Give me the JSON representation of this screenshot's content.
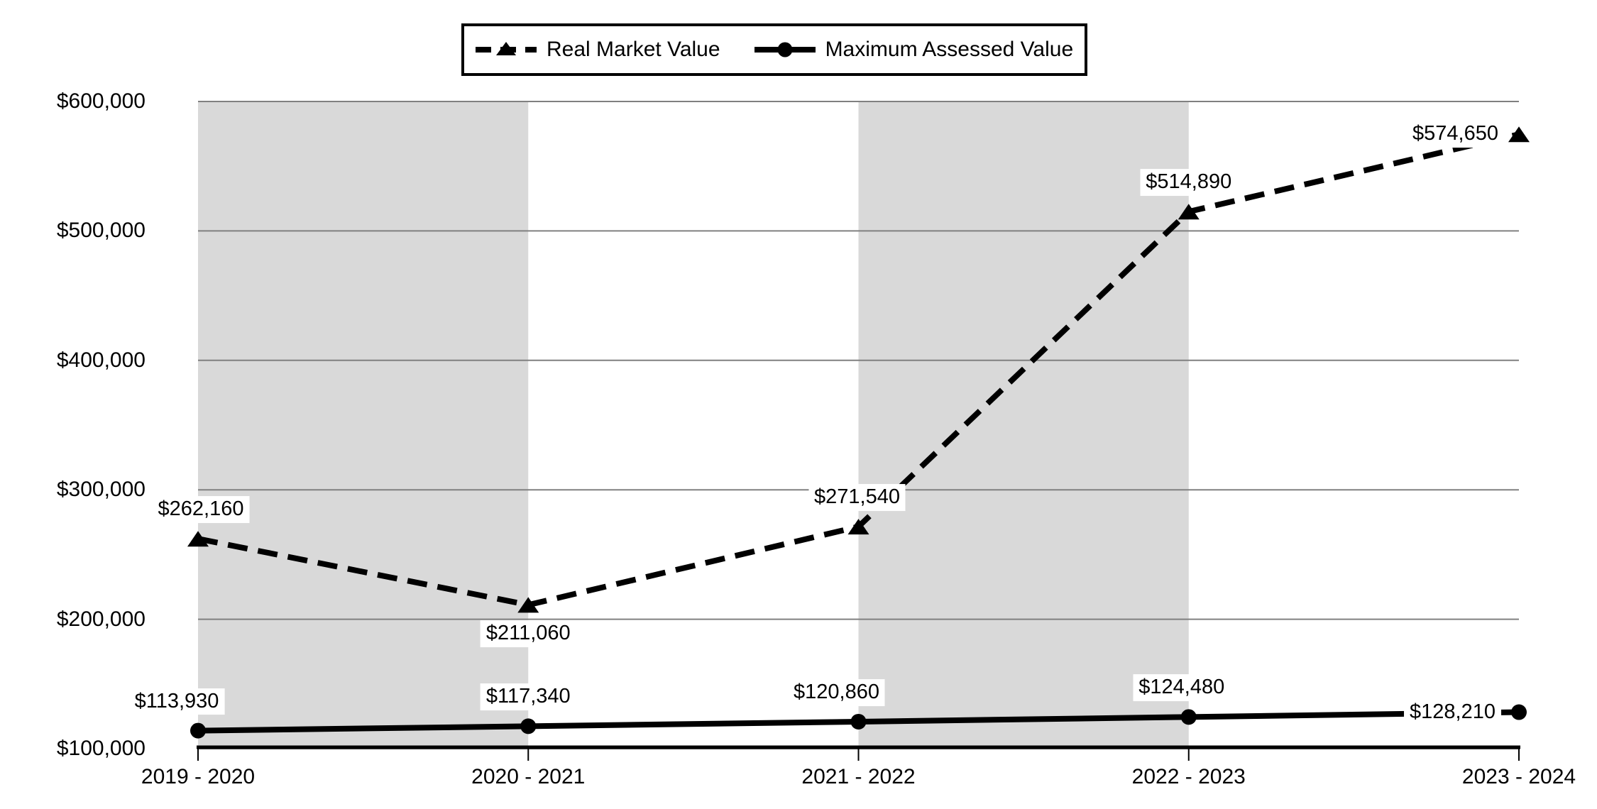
{
  "chart_data": {
    "type": "line",
    "title": "",
    "categories": [
      "2019 - 2020",
      "2020 - 2021",
      "2021 - 2022",
      "2022 - 2023",
      "2023 - 2024"
    ],
    "series": [
      {
        "name": "Real Market Value",
        "style": "dashed",
        "marker": "triangle",
        "values": [
          262160,
          211060,
          271540,
          514890,
          574650
        ],
        "labels": [
          "$262,160",
          "$211,060",
          "$271,540",
          "$514,890",
          "$574,650"
        ],
        "label_pos": [
          "above",
          "below",
          "above",
          "above",
          "left"
        ],
        "label_dx": [
          4,
          0,
          -2,
          0,
          0
        ]
      },
      {
        "name": "Maximum Assessed Value",
        "style": "solid",
        "marker": "circle",
        "values": [
          113930,
          117340,
          120860,
          124480,
          128210
        ],
        "labels": [
          "$113,930",
          "$117,340",
          "$120,860",
          "$124,480",
          "$128,210"
        ],
        "label_pos": [
          "above",
          "above",
          "above",
          "above",
          "left"
        ],
        "label_dx": [
          -30,
          0,
          -31,
          -10,
          0
        ]
      }
    ],
    "xlabel": "",
    "ylabel": "",
    "ylim": [
      100000,
      600000
    ],
    "y_ticks": [
      {
        "value": 100000,
        "label": "$100,000"
      },
      {
        "value": 200000,
        "label": "$200,000"
      },
      {
        "value": 300000,
        "label": "$300,000"
      },
      {
        "value": 400000,
        "label": "$400,000"
      },
      {
        "value": 500000,
        "label": "$500,000"
      },
      {
        "value": 600000,
        "label": "$600,000"
      }
    ],
    "shaded_spans": [
      [
        0,
        1
      ],
      [
        2,
        3
      ]
    ],
    "grid": true,
    "legend_position": "top",
    "colors": {
      "series": "#000000",
      "shaded_band": "#d9d9d9",
      "gridline": "#808080",
      "axis": "#000000",
      "background": "#ffffff",
      "label_background": "#ffffff",
      "text": "#000000"
    }
  }
}
